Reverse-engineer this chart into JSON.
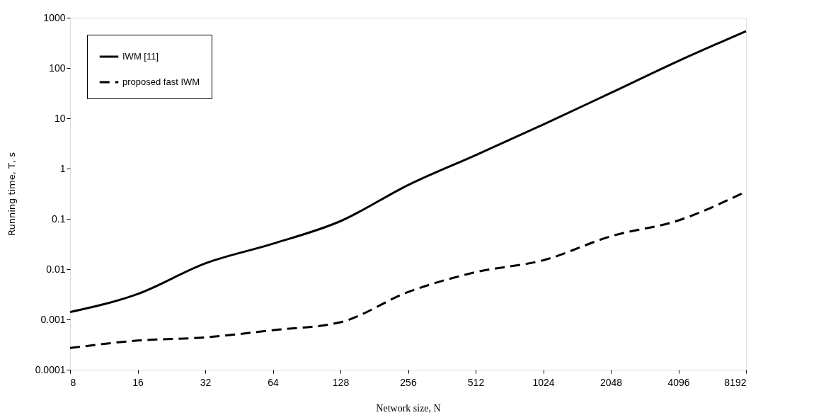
{
  "chart_data": {
    "type": "line",
    "xlabel": "Network size, N",
    "ylabel": "Running time, T, s",
    "categories": [
      "8",
      "16",
      "32",
      "64",
      "128",
      "256",
      "512",
      "1024",
      "2048",
      "4096",
      "8192"
    ],
    "series": [
      {
        "name": "IWM [11]",
        "color": "#000000",
        "line_style": "solid",
        "values": [
          0.0014,
          0.0032,
          0.013,
          0.032,
          0.09,
          0.47,
          1.85,
          7.5,
          32,
          138,
          540
        ]
      },
      {
        "name": "proposed fast IWM",
        "color": "#000000",
        "line_style": "dashed",
        "values": [
          0.00027,
          0.00038,
          0.00044,
          0.00061,
          0.00088,
          0.0035,
          0.0087,
          0.015,
          0.045,
          0.093,
          0.35
        ]
      }
    ],
    "log": "y",
    "ylim": [
      0.0001,
      1000
    ],
    "yticks": [
      0.0001,
      0.001,
      0.01,
      0.1,
      1,
      10,
      100,
      1000
    ],
    "grid": false,
    "legend": "top left",
    "marker": "none"
  }
}
